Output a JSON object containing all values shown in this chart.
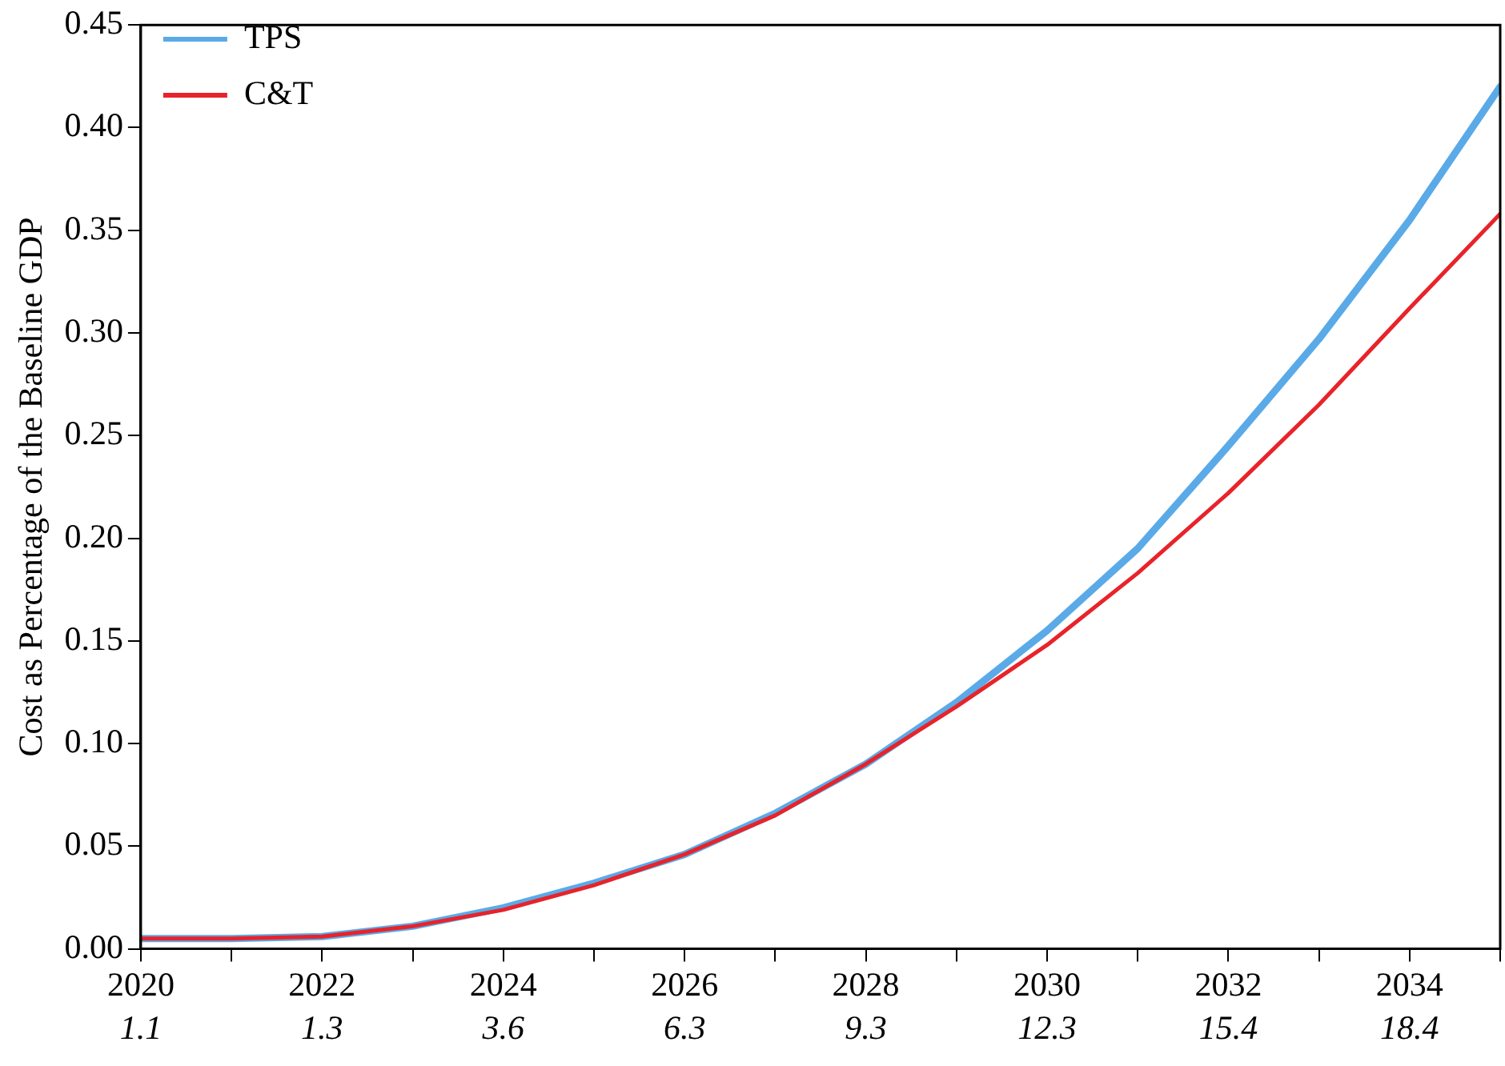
{
  "chart_data": {
    "type": "line",
    "ylabel": "Cost as Percentage of the Baseline GDP",
    "x": [
      2020,
      2021,
      2022,
      2023,
      2024,
      2025,
      2026,
      2027,
      2028,
      2029,
      2030,
      2031,
      2032,
      2033,
      2034,
      2035
    ],
    "series": [
      {
        "name": "TPS",
        "color": "#5aaae8",
        "values": [
          0.005,
          0.005,
          0.006,
          0.011,
          0.02,
          0.032,
          0.046,
          0.066,
          0.09,
          0.12,
          0.155,
          0.195,
          0.245,
          0.297,
          0.355,
          0.42
        ]
      },
      {
        "name": "C&T",
        "color": "#e8232a",
        "values": [
          0.005,
          0.005,
          0.006,
          0.011,
          0.019,
          0.031,
          0.046,
          0.065,
          0.09,
          0.118,
          0.148,
          0.183,
          0.222,
          0.265,
          0.312,
          0.358
        ]
      }
    ],
    "xlim": [
      2020,
      2035
    ],
    "xticks": [
      2020,
      {
        "value": 2021,
        "label": null
      },
      2022,
      {
        "value": 2023,
        "label": null
      },
      2024,
      {
        "value": 2025,
        "label": null
      },
      2026,
      {
        "value": 2027,
        "label": null
      },
      2028,
      {
        "value": 2029,
        "label": null
      },
      2030,
      {
        "value": 2031,
        "label": null
      },
      2032,
      {
        "value": 2033,
        "label": null
      },
      2034,
      {
        "value": 2035,
        "label": null
      }
    ],
    "annotations": [
      "1.1",
      "1.3",
      "3.6",
      "6.3",
      "9.3",
      "12.3",
      "15.4",
      "18.4"
    ],
    "ylim": [
      0,
      0.45
    ],
    "yticks": [
      {
        "value": 0,
        "label": "0.00"
      },
      {
        "value": 0.05,
        "label": "0.05"
      },
      {
        "value": 0.1,
        "label": "0.10"
      },
      {
        "value": 0.15,
        "label": "0.15"
      },
      {
        "value": 0.2,
        "label": "0.20"
      },
      {
        "value": 0.25,
        "label": "0.25"
      },
      {
        "value": 0.3,
        "label": "0.30"
      },
      {
        "value": 0.35,
        "label": "0.35"
      },
      {
        "value": 0.4,
        "label": "0.40"
      },
      {
        "value": 0.45,
        "label": "0.45"
      }
    ],
    "grid": false,
    "legend": "top left",
    "marker": "none",
    "line_style": "solid"
  }
}
